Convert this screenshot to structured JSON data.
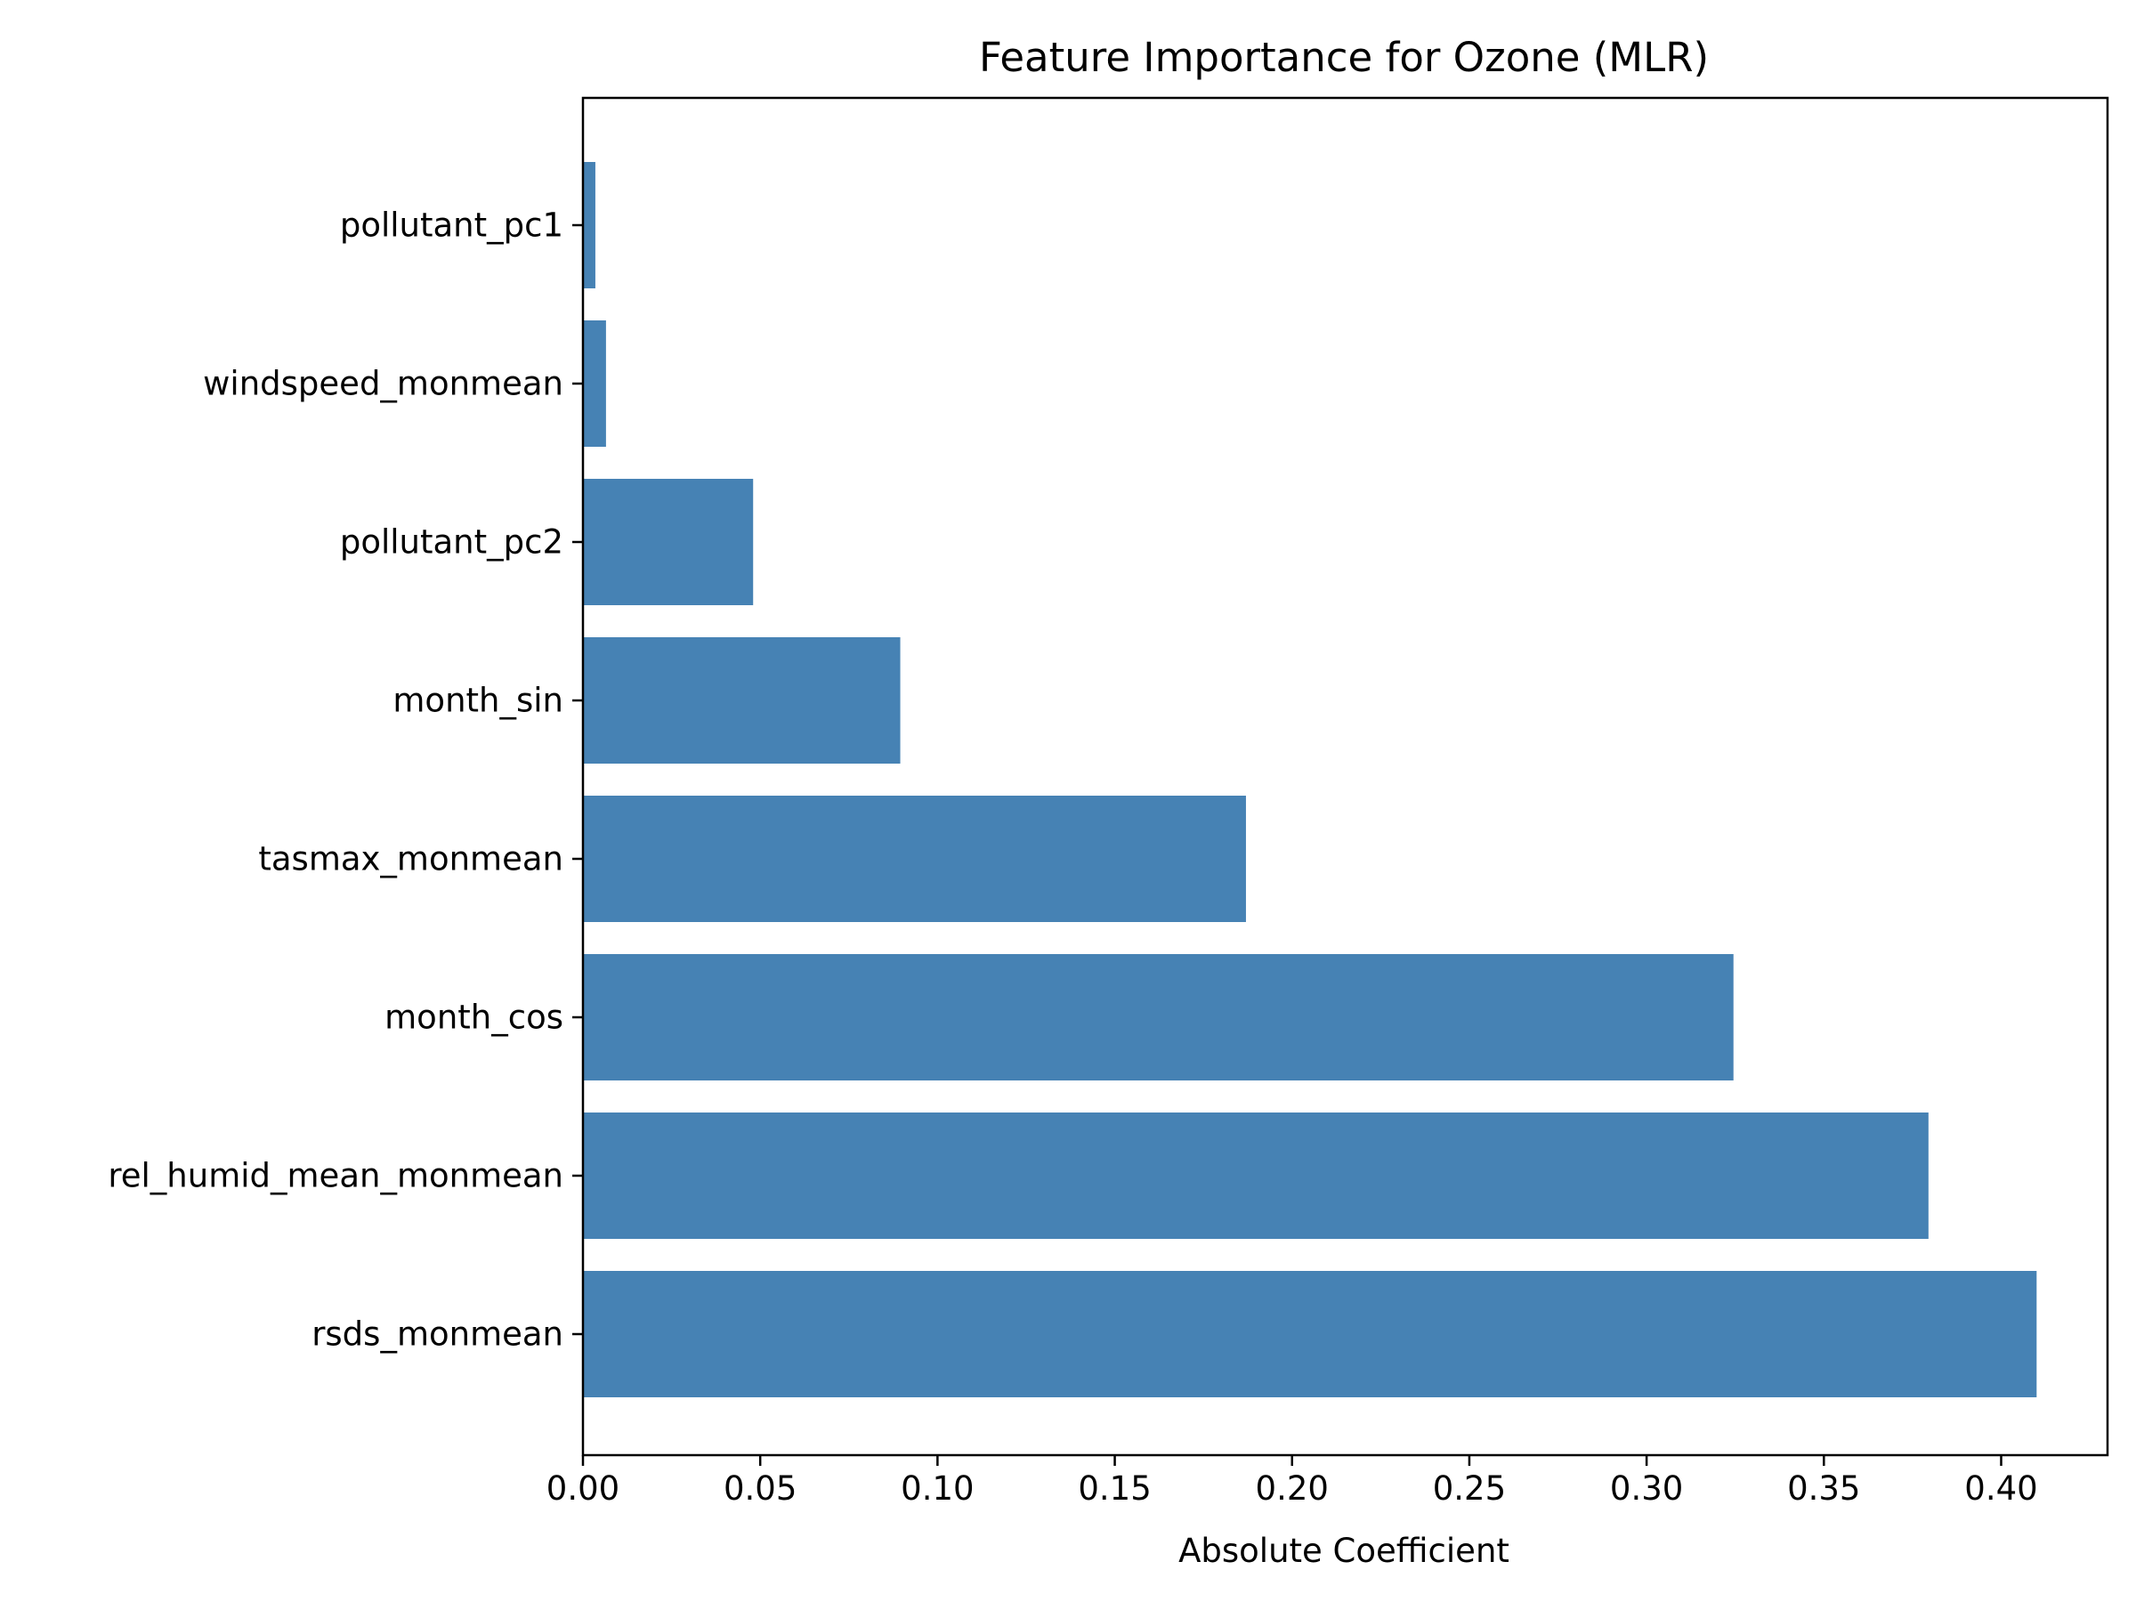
{
  "chart_data": {
    "type": "bar",
    "orientation": "horizontal",
    "title": "Feature Importance for Ozone (MLR)",
    "xlabel": "Absolute Coefficient",
    "ylabel": "",
    "xlim": [
      0,
      0.43
    ],
    "x_ticks": [
      0.0,
      0.05,
      0.1,
      0.15,
      0.2,
      0.25,
      0.3,
      0.35,
      0.4
    ],
    "x_tick_labels": [
      "0.00",
      "0.05",
      "0.10",
      "0.15",
      "0.20",
      "0.25",
      "0.30",
      "0.35",
      "0.40"
    ],
    "categories_top_to_bottom": [
      "pollutant_pc1",
      "windspeed_monmean",
      "pollutant_pc2",
      "month_sin",
      "tasmax_monmean",
      "month_cos",
      "rel_humid_mean_monmean",
      "rsds_monmean"
    ],
    "values": [
      0.0035,
      0.0065,
      0.048,
      0.0895,
      0.187,
      0.3245,
      0.3795,
      0.41
    ],
    "bar_color": "#4682b4",
    "grid": false,
    "legend": "none"
  }
}
